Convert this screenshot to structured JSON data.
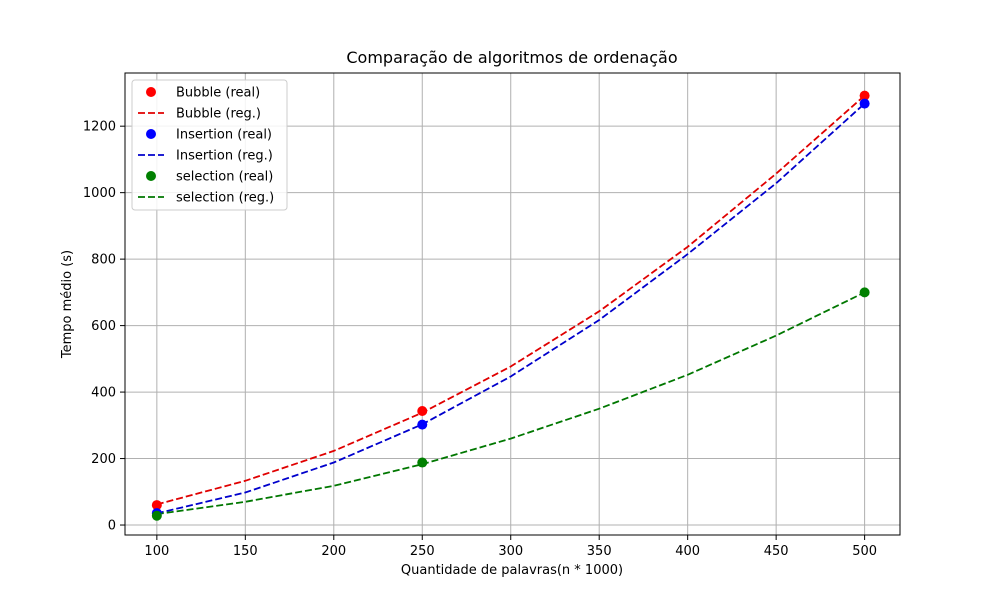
{
  "chart_data": {
    "type": "line",
    "title": "Comparação de algoritmos de ordenação",
    "xlabel": "Quantidade de palavras(n * 1000)",
    "ylabel": "Tempo médio (s)",
    "xlim": [
      82,
      520
    ],
    "ylim": [
      -30,
      1360
    ],
    "xticks": [
      100,
      150,
      200,
      250,
      300,
      350,
      400,
      450,
      500
    ],
    "yticks": [
      0,
      200,
      400,
      600,
      800,
      1000,
      1200
    ],
    "grid": true,
    "legend_position": "top-left",
    "series": [
      {
        "name": "Bubble (real)",
        "kind": "scatter",
        "color": "#ff0000",
        "x": [
          100,
          250,
          500
        ],
        "y": [
          60,
          343,
          1292
        ]
      },
      {
        "name": "Bubble (reg.)",
        "kind": "dashed-line",
        "color": "#e00000",
        "x": [
          100,
          150,
          200,
          250,
          300,
          350,
          400,
          450,
          500
        ],
        "y": [
          62,
          133,
          223,
          338,
          477,
          643,
          837,
          1057,
          1292
        ]
      },
      {
        "name": "Insertion (real)",
        "kind": "scatter",
        "color": "#0000ff",
        "x": [
          100,
          250,
          500
        ],
        "y": [
          36,
          302,
          1268
        ]
      },
      {
        "name": "Insertion (reg.)",
        "kind": "dashed-line",
        "color": "#0000cc",
        "x": [
          100,
          150,
          200,
          250,
          300,
          350,
          400,
          450,
          500
        ],
        "y": [
          35,
          98,
          188,
          303,
          447,
          617,
          815,
          1028,
          1268
        ]
      },
      {
        "name": "selection (real)",
        "kind": "scatter",
        "color": "#008000",
        "x": [
          100,
          250,
          500
        ],
        "y": [
          28,
          188,
          700
        ]
      },
      {
        "name": "selection (reg.)",
        "kind": "dashed-line",
        "color": "#007700",
        "x": [
          100,
          150,
          200,
          250,
          300,
          350,
          400,
          450,
          500
        ],
        "y": [
          33,
          70,
          118,
          183,
          260,
          350,
          452,
          570,
          700
        ]
      }
    ]
  }
}
